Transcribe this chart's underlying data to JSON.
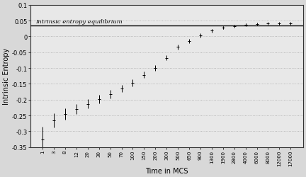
{
  "x_labels": [
    "1",
    "3",
    "8",
    "12",
    "20",
    "30",
    "50",
    "70",
    "100",
    "150",
    "200",
    "300",
    "500",
    "650",
    "900",
    "1300",
    "1900",
    "2800",
    "4000",
    "6000",
    "8000",
    "12000",
    "17000"
  ],
  "y_values": [
    -0.325,
    -0.265,
    -0.245,
    -0.23,
    -0.213,
    -0.198,
    -0.182,
    -0.165,
    -0.147,
    -0.122,
    -0.1,
    -0.068,
    -0.033,
    -0.015,
    0.003,
    0.018,
    0.028,
    0.033,
    0.037,
    0.039,
    0.04,
    0.04,
    0.04
  ],
  "y_errors": [
    0.04,
    0.022,
    0.018,
    0.016,
    0.015,
    0.014,
    0.013,
    0.012,
    0.011,
    0.01,
    0.009,
    0.008,
    0.008,
    0.007,
    0.006,
    0.005,
    0.005,
    0.004,
    0.003,
    0.002,
    0.002,
    0.002,
    0.002
  ],
  "equilibrium_line": 0.034,
  "equilibrium_label": "Intrinsic entropy equilibrium",
  "xlabel": "Time in MCS",
  "ylabel": "Intrinsic Entropy",
  "ylim": [
    -0.35,
    0.1
  ],
  "yticks": [
    0.1,
    0.05,
    0.0,
    -0.05,
    -0.1,
    -0.15,
    -0.2,
    -0.25,
    -0.3,
    -0.35
  ],
  "ytick_labels": [
    "0.1",
    "0.05",
    "0",
    "-0.05",
    "-0.1",
    "-0.15",
    "-0.2",
    "-0.25",
    "-0.3",
    "-0.35"
  ],
  "line_color": "#000000",
  "bg_color": "#d8d8d8",
  "plot_bg_color": "#e8e8e8"
}
